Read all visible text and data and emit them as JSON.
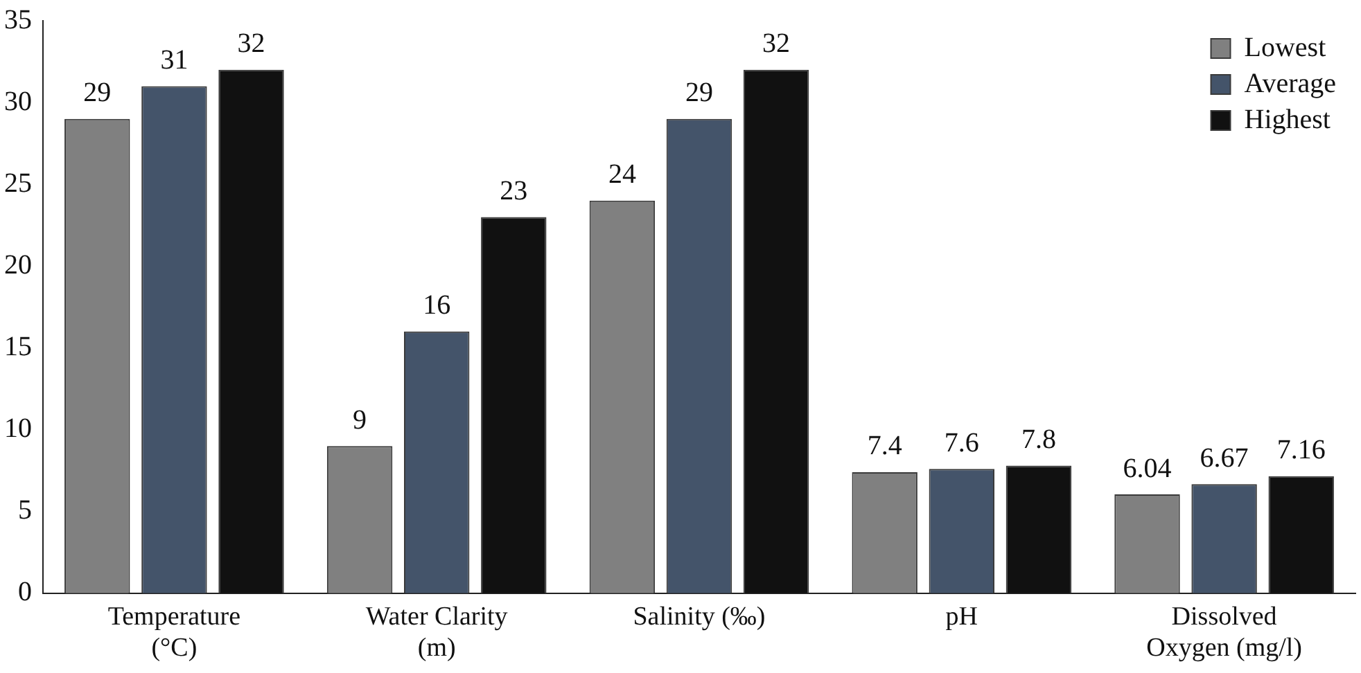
{
  "chart_data": {
    "type": "bar",
    "categories": [
      "Temperature\n(°C)",
      "Water Clarity\n(m)",
      "Salinity (‰)",
      "pH",
      "Dissolved\nOxygen (mg/l)"
    ],
    "series": [
      {
        "name": "Lowest",
        "color": "#808080",
        "values": [
          29,
          9,
          24,
          7.4,
          6.04
        ]
      },
      {
        "name": "Average",
        "color": "#44546a",
        "values": [
          31,
          16,
          29,
          7.6,
          6.67
        ]
      },
      {
        "name": "Highest",
        "color": "#111111",
        "values": [
          32,
          23,
          32,
          7.8,
          7.16
        ]
      }
    ],
    "ylim": [
      0,
      35
    ],
    "yticks": [
      0,
      5,
      10,
      15,
      20,
      25,
      30,
      35
    ],
    "grid": false,
    "legend": "top right",
    "data_labels": true
  }
}
